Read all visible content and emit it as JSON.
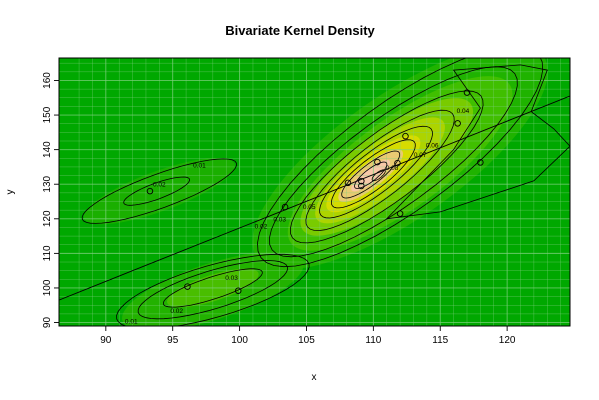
{
  "chart_data": {
    "type": "contour",
    "title": "Bivariate Kernel Density",
    "xlabel": "x",
    "ylabel": "y",
    "xlim": [
      86.5,
      124.7
    ],
    "ylim": [
      89,
      166.5
    ],
    "x_ticks": [
      90,
      95,
      100,
      105,
      110,
      115,
      120
    ],
    "y_ticks": [
      90,
      100,
      110,
      120,
      130,
      140,
      150,
      160
    ],
    "grid": true,
    "colors": {
      "low": "#00a800",
      "mid": "#d8e000",
      "high": "#f6c8a8",
      "grid": "#7fd07f",
      "contour": "#000000"
    },
    "points": [
      {
        "x": 93.3,
        "y": 128.0
      },
      {
        "x": 96.1,
        "y": 100.4
      },
      {
        "x": 99.9,
        "y": 99.2
      },
      {
        "x": 103.4,
        "y": 123.4
      },
      {
        "x": 108.1,
        "y": 130.4
      },
      {
        "x": 109.1,
        "y": 129.5
      },
      {
        "x": 109.1,
        "y": 130.9
      },
      {
        "x": 110.3,
        "y": 136.4
      },
      {
        "x": 111.8,
        "y": 136.1
      },
      {
        "x": 112.0,
        "y": 121.5
      },
      {
        "x": 112.4,
        "y": 143.9
      },
      {
        "x": 116.3,
        "y": 147.6
      },
      {
        "x": 117.0,
        "y": 156.5
      },
      {
        "x": 118.0,
        "y": 136.3
      }
    ],
    "regression_line": {
      "x": [
        86.5,
        124.7
      ],
      "y": [
        96.5,
        155.5
      ]
    },
    "contour_labels": [
      {
        "text": "0.01",
        "x": 97.0,
        "y": 134.8
      },
      {
        "text": "0.02",
        "x": 94.0,
        "y": 129.4
      },
      {
        "text": "0.02",
        "x": 101.6,
        "y": 117.2
      },
      {
        "text": "0.03",
        "x": 103.0,
        "y": 119.2
      },
      {
        "text": "0.05",
        "x": 105.2,
        "y": 122.8
      },
      {
        "text": "0.08",
        "x": 111.4,
        "y": 134.1
      },
      {
        "text": "0.07",
        "x": 113.5,
        "y": 137.9
      },
      {
        "text": "0.06",
        "x": 114.4,
        "y": 140.6
      },
      {
        "text": "0.04",
        "x": 116.7,
        "y": 150.6
      },
      {
        "text": "0.03",
        "x": 99.4,
        "y": 102.3
      },
      {
        "text": "0.02",
        "x": 95.3,
        "y": 92.7
      },
      {
        "text": "0.01",
        "x": 91.9,
        "y": 89.7
      }
    ]
  }
}
